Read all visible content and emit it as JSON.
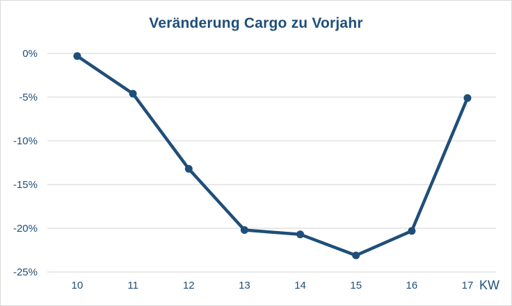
{
  "title": "Veränderung Cargo zu Vorjahr",
  "chart_data": {
    "type": "line",
    "title": "Veränderung Cargo zu Vorjahr",
    "x": [
      10,
      11,
      12,
      13,
      14,
      15,
      16,
      17
    ],
    "values": [
      -0.3,
      -4.6,
      -13.2,
      -20.2,
      -20.7,
      -23.1,
      -20.3,
      -5.1
    ],
    "x_unit_label": "KW",
    "xlabel": "KW",
    "ylabel": "",
    "ylim": [
      -25,
      0
    ],
    "yticks": [
      0,
      -5,
      -10,
      -15,
      -20,
      -25
    ],
    "ytick_labels": [
      "0%",
      "-5%",
      "-10%",
      "-15%",
      "-20%",
      "-25%"
    ],
    "xtick_labels": [
      "10",
      "11",
      "12",
      "13",
      "14",
      "15",
      "16",
      "17"
    ],
    "grid": true,
    "legend": false,
    "colors": {
      "line": "#1F4E79",
      "marker": "#1F4E79",
      "title": "#1F4E79",
      "tick_labels": "#1F4E79",
      "gridline": "#D9D9D9",
      "border": "#D9D9D9",
      "background": "#FFFFFF"
    }
  }
}
